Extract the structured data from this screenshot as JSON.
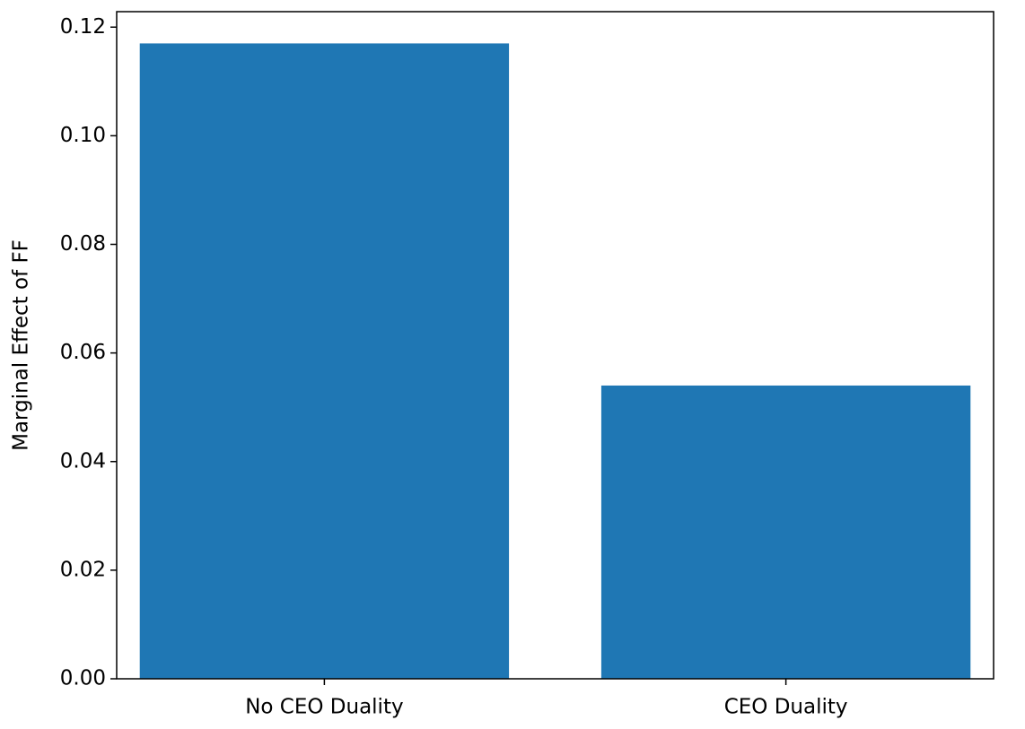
{
  "chart_data": {
    "type": "bar",
    "y_label": "Marginal Effect of FF",
    "categories": [
      "No CEO Duality",
      "CEO Duality"
    ],
    "values": [
      0.117,
      0.054
    ],
    "color": "#1f77b4",
    "ylim": [
      0,
      0.12285
    ],
    "yticks": [
      {
        "value": 0,
        "label": "0.00"
      },
      0.02,
      0.04,
      0.06,
      0.08,
      {
        "value": 0.1,
        "label": "0.10"
      },
      {
        "value": 0.12,
        "label": "0.12"
      }
    ],
    "grid": false
  }
}
